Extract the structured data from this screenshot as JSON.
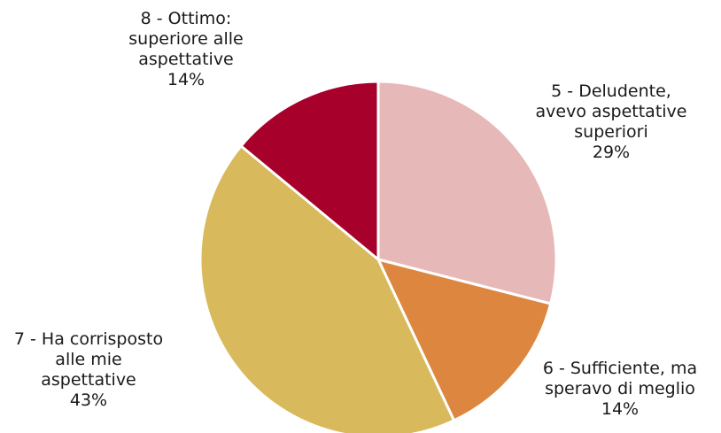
{
  "chart_data": {
    "type": "pie",
    "title": "",
    "start_angle_deg": 0,
    "direction": "clockwise",
    "slices": [
      {
        "label": "5 - Deludente, avevo aspettative superiori",
        "label_lines": [
          "5 - Deludente,",
          "avevo aspettative",
          "superiori"
        ],
        "value": 29,
        "pct_label": "29%",
        "color": "#E6B8B7"
      },
      {
        "label": "6 - Sufficiente, ma speravo di meglio",
        "label_lines": [
          "6 - Sufficiente, ma",
          "speravo di meglio"
        ],
        "value": 14,
        "pct_label": "14%",
        "color": "#DD8640"
      },
      {
        "label": "7 - Ha corrisposto alle mie aspettative",
        "label_lines": [
          "7 - Ha corrisposto",
          "alle mie",
          "aspettative"
        ],
        "value": 43,
        "pct_label": "43%",
        "color": "#D8B95B"
      },
      {
        "label": "8 - Ottimo: superiore alle aspettative",
        "label_lines": [
          "8 - Ottimo:",
          "superiore alle",
          "aspettative"
        ],
        "value": 14,
        "pct_label": "14%",
        "color": "#A6002B"
      }
    ]
  }
}
